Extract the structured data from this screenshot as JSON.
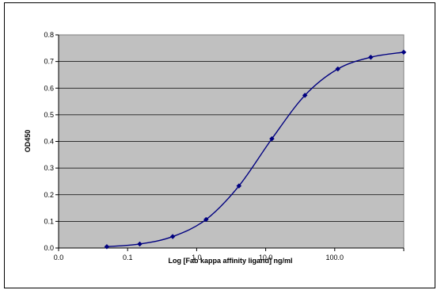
{
  "chart_data": {
    "type": "line",
    "title": "",
    "xlabel": "Log [Fab kappa affinity ligand] ng/ml",
    "ylabel": "OD450",
    "x_scale": "log",
    "xlim": [
      0.01,
      1000
    ],
    "ylim": [
      0,
      0.8
    ],
    "x_tick_labels": [
      "0.0",
      "0.1",
      "1.0",
      "10.0",
      "100.0"
    ],
    "y_tick_labels": [
      "0.0",
      "0.1",
      "0.2",
      "0.3",
      "0.4",
      "0.5",
      "0.6",
      "0.7",
      "0.8"
    ],
    "grid": true,
    "plot_background": "#c0c0c0",
    "series_color": "#000080",
    "series": [
      {
        "x": [
          0.05,
          0.15,
          0.45,
          1.37,
          4.1,
          12.3,
          37,
          111,
          333,
          1000
        ],
        "values": [
          0.005,
          0.015,
          0.043,
          0.107,
          0.233,
          0.41,
          0.573,
          0.672,
          0.716,
          0.735
        ]
      }
    ]
  }
}
